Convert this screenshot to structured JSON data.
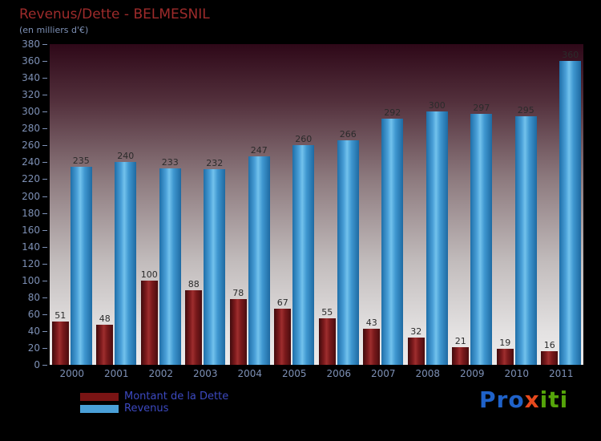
{
  "header": {
    "title": "Revenus/Dette - BELMESNIL",
    "subtitle": "(en milliers d'€)"
  },
  "chart_data": {
    "type": "bar",
    "title": "Revenus/Dette - BELMESNIL",
    "subtitle": "(en milliers d'€)",
    "categories": [
      "2000",
      "2001",
      "2002",
      "2003",
      "2004",
      "2005",
      "2006",
      "2007",
      "2008",
      "2009",
      "2010",
      "2011"
    ],
    "series": [
      {
        "name": "Montant de la Dette",
        "color": "#7a1414",
        "values": [
          51,
          48,
          100,
          88,
          78,
          67,
          55,
          43,
          32,
          21,
          19,
          16
        ]
      },
      {
        "name": "Revenus",
        "color": "#4aa0d8",
        "values": [
          235,
          240,
          233,
          232,
          247,
          260,
          266,
          292,
          300,
          297,
          295,
          360
        ]
      }
    ],
    "xlabel": "",
    "ylabel": "",
    "ylim": [
      0,
      380
    ],
    "ytick": 20,
    "grid": false,
    "legend_position": "bottom-left"
  },
  "legend": {
    "items": [
      {
        "label": "Montant de la Dette",
        "color": "#7a1414"
      },
      {
        "label": "Revenus",
        "color": "#4aa0d8"
      }
    ]
  },
  "logo": {
    "segments": [
      {
        "text": "Pro",
        "color": "#1f62c9"
      },
      {
        "text": "x",
        "color": "#e8491d"
      },
      {
        "text": "iti",
        "color": "#55a40a"
      }
    ]
  },
  "colors": {
    "background": "#000000",
    "title": "#9e2b2b",
    "axis_text": "#7d90b5",
    "value_label": "#2b2b2b",
    "legend_text": "#3c49c0"
  }
}
